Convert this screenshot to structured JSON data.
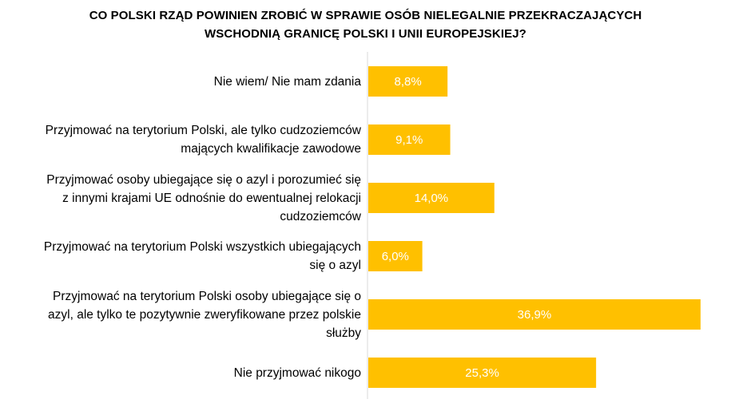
{
  "chart_data": {
    "type": "bar",
    "orientation": "horizontal",
    "title": "CO POLSKI RZĄD POWINIEN ZROBIĆ W SPRAWIE OSÓB NIELEGALNIE PRZEKRACZAJĄCYCH\nWSCHODNIĄ GRANICĘ POLSKI I UNII EUROPEJSKIEJ?",
    "categories": [
      "Nie wiem/ Nie mam zdania",
      "Przyjmować na terytorium Polski, ale tylko cudzoziemców\nmających kwalifikacje zawodowe",
      "Przyjmować osoby ubiegające się o azyl i porozumieć się\nz innymi krajami UE odnośnie do ewentualnej relokacji\ncudzoziemców",
      "Przyjmować na terytorium Polski wszystkich ubiegających\nsię o azyl",
      "Przyjmować na terytorium Polski osoby ubiegające się o\nazyl, ale tylko te pozytywnie zweryfikowane przez polskie\nsłużby",
      "Nie przyjmować nikogo"
    ],
    "values": [
      8.8,
      9.1,
      14.0,
      6.0,
      36.9,
      25.3
    ],
    "data_labels": [
      "8,8%",
      "9,1%",
      "14,0%",
      "6,0%",
      "36,9%",
      "25,3%"
    ],
    "xlim": [
      0,
      37
    ],
    "bar_color": "#FFC000",
    "label_color": "#FFFFFF",
    "grid": false,
    "legend": "none",
    "axis_line_color": "#D9D9D9"
  }
}
